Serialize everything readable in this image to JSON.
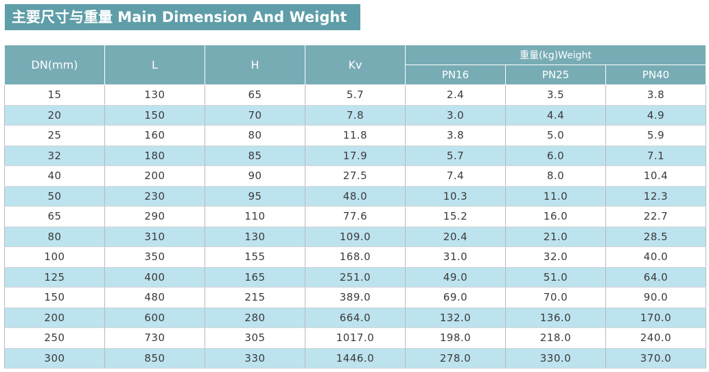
{
  "title": "主要尺寸与重量 Main Dimension And Weight",
  "headers": {
    "dn": "DN(mm)",
    "l": "L",
    "h": "H",
    "kv": "Kv",
    "weight_group": "重量(kg)Weight",
    "pn16": "PN16",
    "pn25": "PN25",
    "pn40": "PN40"
  },
  "rows": [
    [
      "15",
      "130",
      "65",
      "5.7",
      "2.4",
      "3.5",
      "3.8"
    ],
    [
      "20",
      "150",
      "70",
      "7.8",
      "3.0",
      "4.4",
      "4.9"
    ],
    [
      "25",
      "160",
      "80",
      "11.8",
      "3.8",
      "5.0",
      "5.9"
    ],
    [
      "32",
      "180",
      "85",
      "17.9",
      "5.7",
      "6.0",
      "7.1"
    ],
    [
      "40",
      "200",
      "90",
      "27.5",
      "7.4",
      "8.0",
      "10.4"
    ],
    [
      "50",
      "230",
      "95",
      "48.0",
      "10.3",
      "11.0",
      "12.3"
    ],
    [
      "65",
      "290",
      "110",
      "77.6",
      "15.2",
      "16.0",
      "22.7"
    ],
    [
      "80",
      "310",
      "130",
      "109.0",
      "20.4",
      "21.0",
      "28.5"
    ],
    [
      "100",
      "350",
      "155",
      "168.0",
      "31.0",
      "32.0",
      "40.0"
    ],
    [
      "125",
      "400",
      "165",
      "251.0",
      "49.0",
      "51.0",
      "64.0"
    ],
    [
      "150",
      "480",
      "215",
      "389.0",
      "69.0",
      "70.0",
      "90.0"
    ],
    [
      "200",
      "600",
      "280",
      "664.0",
      "132.0",
      "136.0",
      "170.0"
    ],
    [
      "250",
      "730",
      "305",
      "1017.0",
      "198.0",
      "218.0",
      "240.0"
    ],
    [
      "300",
      "850",
      "330",
      "1446.0",
      "278.0",
      "330.0",
      "370.0"
    ]
  ],
  "colors": {
    "title_bg": "#5f9ea8",
    "header_bg": "#78acb5",
    "stripe": "#bde3ef"
  }
}
